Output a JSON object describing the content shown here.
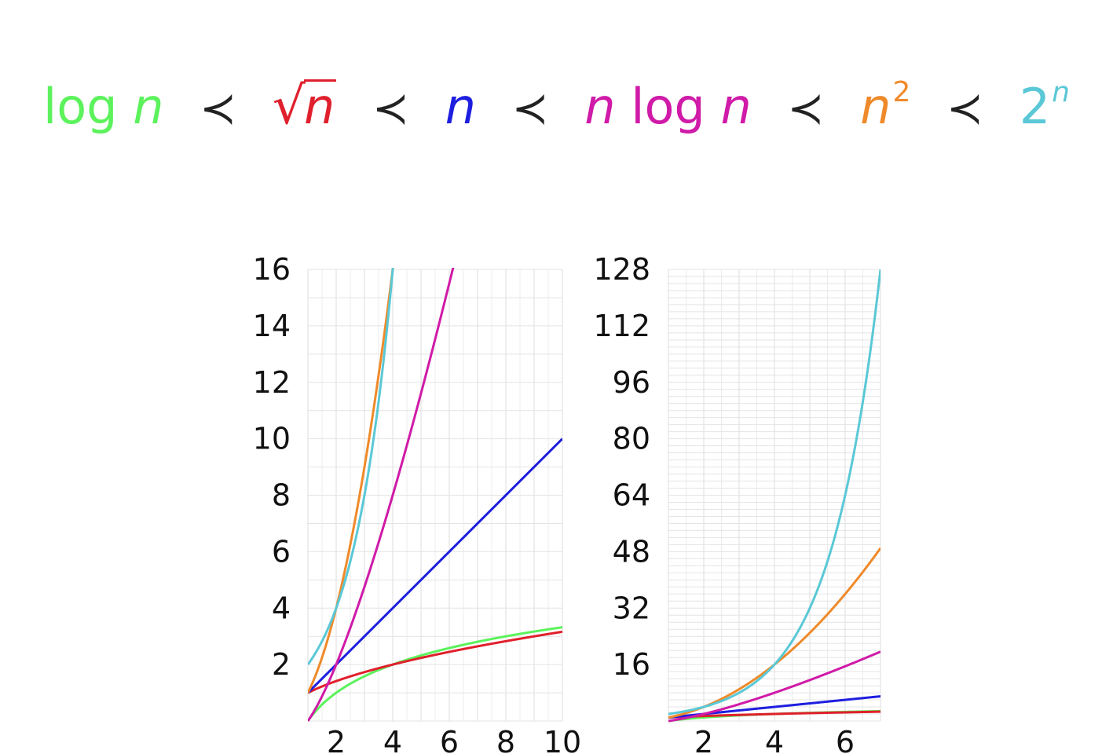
{
  "formula": {
    "relation_symbol": "≺",
    "terms": [
      {
        "prefix": "log ",
        "var": "n",
        "color": "#5cf25c"
      },
      {
        "radical": "√",
        "var": "n",
        "color": "#e0202c"
      },
      {
        "var": "n",
        "color": "#1e1ee0"
      },
      {
        "var": "n",
        "suffix": "log ",
        "var2": "n",
        "color": "#d01aa8"
      },
      {
        "var": "n",
        "sup": "2",
        "color": "#ef8a2a"
      },
      {
        "base": "2",
        "sup": "n",
        "color": "#5ac8d6"
      }
    ]
  },
  "chart_data": [
    {
      "type": "line",
      "title": "",
      "xlabel": "",
      "ylabel": "",
      "xlim": [
        1,
        10
      ],
      "ylim": [
        0,
        16
      ],
      "grid": true,
      "x_ticks": [
        "2",
        "4",
        "6",
        "8",
        "10"
      ],
      "y_ticks": [
        "2",
        "4",
        "6",
        "8",
        "10",
        "12",
        "14",
        "16"
      ],
      "series": [
        {
          "function": "log n",
          "color": "#5cf25c",
          "x": [
            1,
            2,
            3,
            4,
            6,
            8,
            10
          ],
          "y": [
            0,
            1,
            1.58,
            2,
            2.58,
            3,
            3.32
          ]
        },
        {
          "function": "sqrt n",
          "color": "#e0202c",
          "x": [
            1,
            2,
            3,
            4,
            6,
            8,
            10
          ],
          "y": [
            1,
            1.41,
            1.73,
            2,
            2.45,
            2.83,
            3.16
          ]
        },
        {
          "function": "n",
          "color": "#1e1ee0",
          "x": [
            1,
            10
          ],
          "y": [
            1,
            10
          ]
        },
        {
          "function": "n log n",
          "color": "#d01aa8",
          "x": [
            1,
            2,
            3,
            4,
            5,
            6,
            6.4
          ],
          "y": [
            0,
            2,
            4.75,
            8,
            11.6,
            15.5,
            16
          ]
        },
        {
          "function": "n^2",
          "color": "#ef8a2a",
          "x": [
            1,
            2,
            3,
            4
          ],
          "y": [
            1,
            4,
            9,
            16
          ]
        },
        {
          "function": "2^n",
          "color": "#5ac8d6",
          "x": [
            1,
            2,
            3,
            4
          ],
          "y": [
            2,
            4,
            8,
            16
          ]
        }
      ]
    },
    {
      "type": "line",
      "title": "",
      "xlabel": "",
      "ylabel": "",
      "xlim": [
        1,
        7
      ],
      "ylim": [
        0,
        128
      ],
      "grid": true,
      "x_ticks": [
        "2",
        "4",
        "6"
      ],
      "y_ticks": [
        "16",
        "32",
        "48",
        "64",
        "80",
        "96",
        "112",
        "128"
      ],
      "series": [
        {
          "function": "log n",
          "color": "#5cf25c",
          "x": [
            1,
            2,
            3,
            4,
            5,
            6,
            7
          ],
          "y": [
            0,
            1,
            1.58,
            2,
            2.32,
            2.58,
            2.81
          ]
        },
        {
          "function": "sqrt n",
          "color": "#e0202c",
          "x": [
            1,
            2,
            3,
            4,
            5,
            6,
            7
          ],
          "y": [
            1,
            1.41,
            1.73,
            2,
            2.24,
            2.45,
            2.65
          ]
        },
        {
          "function": "n",
          "color": "#1e1ee0",
          "x": [
            1,
            7
          ],
          "y": [
            1,
            7
          ]
        },
        {
          "function": "n log n",
          "color": "#d01aa8",
          "x": [
            1,
            2,
            3,
            4,
            5,
            6,
            7
          ],
          "y": [
            0,
            2,
            4.75,
            8,
            11.6,
            15.5,
            19.65
          ]
        },
        {
          "function": "n^2",
          "color": "#ef8a2a",
          "x": [
            1,
            2,
            3,
            4,
            5,
            6,
            7
          ],
          "y": [
            1,
            4,
            9,
            16,
            25,
            36,
            49
          ]
        },
        {
          "function": "2^n",
          "color": "#5ac8d6",
          "x": [
            1,
            2,
            3,
            4,
            5,
            6,
            7
          ],
          "y": [
            2,
            4,
            8,
            16,
            32,
            64,
            128
          ]
        }
      ]
    }
  ]
}
